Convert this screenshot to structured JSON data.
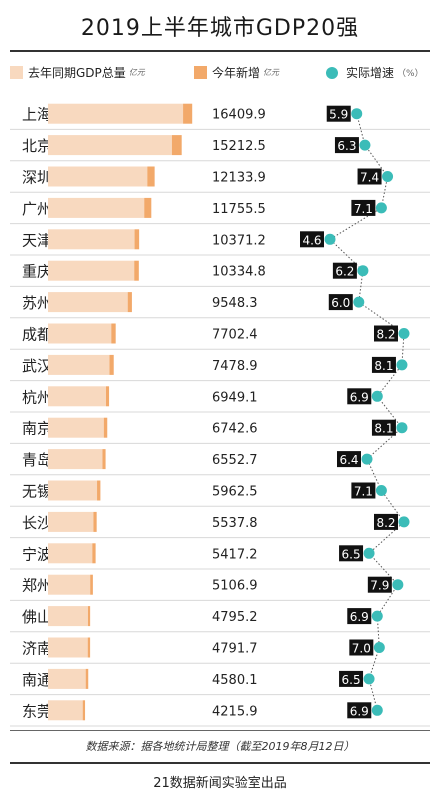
{
  "title": "2019上半年城市GDP20强",
  "legend": {
    "prev_total": "去年同期GDP总量",
    "prev_unit": "亿元",
    "new_increase": "今年新增",
    "new_unit": "亿元",
    "growth": "实际增速",
    "growth_unit": "（%）"
  },
  "colors": {
    "prev_total": "#f8d9bf",
    "new_increase": "#f2a96a",
    "growth_dot": "#3bbcb8",
    "label_bg": "#111111"
  },
  "footer": {
    "source": "数据来源：据各地统计局整理（截至2019年8月12日）",
    "credit": "21数据新闻实验室出品"
  },
  "chart_data": {
    "type": "bar",
    "title": "2019上半年城市GDP20强",
    "categories": [
      "上海",
      "北京",
      "深圳",
      "广州",
      "天津",
      "重庆",
      "苏州",
      "成都",
      "武汉",
      "杭州",
      "南京",
      "青岛",
      "无锡",
      "长沙",
      "宁波",
      "郑州",
      "佛山",
      "济南",
      "南通",
      "东莞"
    ],
    "totals": [
      "16409.9",
      "15212.5",
      "12133.9",
      "11755.5",
      "10371.2",
      "10334.8",
      "9548.3",
      "7702.4",
      "7478.9",
      "6949.1",
      "6742.6",
      "6552.7",
      "5962.5",
      "5537.8",
      "5417.2",
      "5106.9",
      "4795.2",
      "4791.7",
      "4580.1",
      "4215.9"
    ],
    "series": [
      {
        "name": "去年同期GDP总量",
        "values": [
          15370,
          14100,
          11300,
          10950,
          9850,
          9810,
          9070,
          7200,
          7000,
          6600,
          6350,
          6200,
          5580,
          5170,
          5040,
          4800,
          4550,
          4520,
          4290,
          3950
        ]
      },
      {
        "name": "今年新增",
        "values": [
          1039.9,
          1112.5,
          833.9,
          805.5,
          521.2,
          524.8,
          478.3,
          502.4,
          478.9,
          349.1,
          392.6,
          352.7,
          382.5,
          367.8,
          377.2,
          306.9,
          245.2,
          271.7,
          290.1,
          265.9
        ]
      },
      {
        "name": "实际增速",
        "values": [
          5.9,
          6.3,
          7.4,
          7.1,
          4.6,
          6.2,
          6.0,
          8.2,
          8.1,
          6.9,
          8.1,
          6.4,
          7.1,
          8.2,
          6.5,
          7.9,
          6.9,
          7.0,
          6.5,
          6.9
        ]
      }
    ],
    "growth_labels": [
      "5.9",
      "6.3",
      "7.4",
      "7.1",
      "4.6",
      "6.2",
      "6.0",
      "8.2",
      "8.1",
      "6.9",
      "8.1",
      "6.4",
      "7.1",
      "8.2",
      "6.5",
      "7.9",
      "6.9",
      "7.0",
      "6.5",
      "6.9"
    ]
  }
}
